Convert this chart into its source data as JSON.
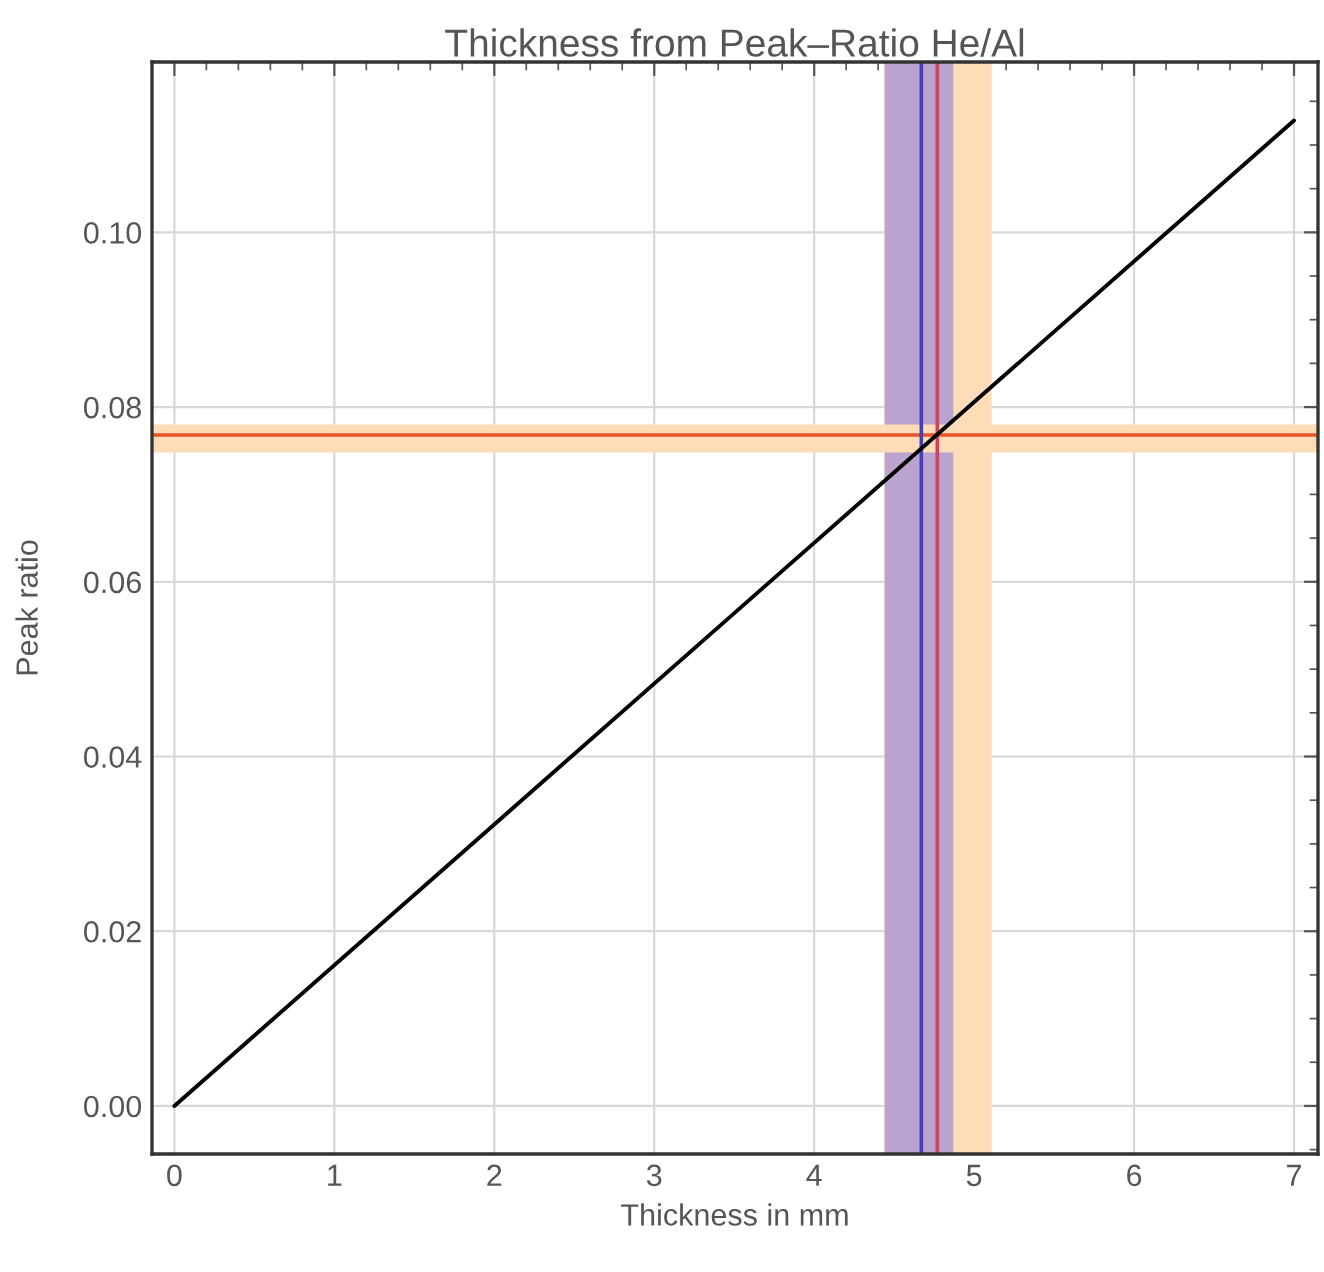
{
  "chart_data": {
    "type": "line",
    "title": "Thickness from Peak–Ratio He/Al",
    "xlabel": "Thickness in mm",
    "ylabel": "Peak ratio",
    "x": [
      0,
      7
    ],
    "series": [
      {
        "color": "#000000",
        "values": [
          0,
          0.1128
        ]
      }
    ],
    "xlim": [
      -0.14,
      7.15
    ],
    "ylim": [
      -0.0055,
      0.1195
    ],
    "xticks": [
      0,
      1,
      2,
      3,
      4,
      5,
      6,
      7
    ],
    "yticks": [
      {
        "value": 0,
        "label": "0.00"
      },
      {
        "value": 0.02,
        "label": "0.02"
      },
      {
        "value": 0.04,
        "label": "0.04"
      },
      {
        "value": 0.06,
        "label": "0.06"
      },
      {
        "value": 0.08,
        "label": "0.08"
      },
      {
        "value": 0.1,
        "label": "0.10"
      }
    ],
    "grid": true,
    "marker": "none",
    "line_style": "solid",
    "bands": [
      {
        "axis": "x",
        "from": 4.44,
        "to": 5.11,
        "color": "#ffdcb8"
      },
      {
        "axis": "x",
        "from": 4.44,
        "to": 4.87,
        "color": "#bba3cf"
      },
      {
        "axis": "y",
        "from": 0.0748,
        "to": 0.078,
        "color": "#ffdcb8"
      }
    ],
    "ref_lines": [
      {
        "axis": "y",
        "value": 0.0768,
        "color": "#e8542a",
        "line_style": "solid"
      },
      {
        "axis": "x",
        "value": 4.67,
        "color": "#3f3fc0",
        "line_style": "solid"
      },
      {
        "axis": "x",
        "value": 4.77,
        "color": "#d04060",
        "line_style": "solid"
      }
    ]
  }
}
